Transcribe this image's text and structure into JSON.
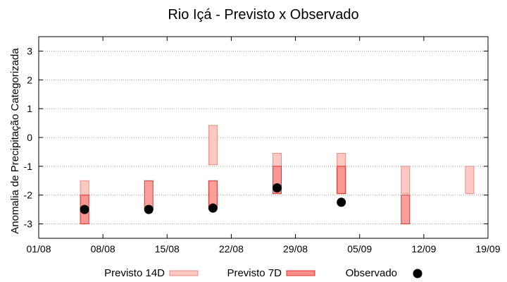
{
  "chart_data": {
    "type": "range-bar",
    "title": "Rio Içá - Previsto x Observado",
    "ylabel": "Anomalia de Precipitação Categorizada",
    "xlabel": "",
    "ylim": [
      -3.5,
      3.5
    ],
    "yticks": [
      -3,
      -2,
      -1,
      0,
      1,
      2,
      3
    ],
    "xlim": [
      "2023-08-01",
      "2023-09-19"
    ],
    "xticks": [
      "01/08",
      "08/08",
      "15/08",
      "22/08",
      "29/08",
      "05/09",
      "12/09",
      "19/09"
    ],
    "grid": true,
    "legend_position": "bottom",
    "colors": {
      "p14_fill": "#fbc8c2",
      "p14_stroke": "#e98b84",
      "p7_fill": "#f98e89",
      "p7_stroke": "#e0302a",
      "obs": "#000000",
      "grid": "#999999"
    },
    "series": [
      {
        "name": "Previsto 14D",
        "kind": "range",
        "points": [
          {
            "date": "2023-08-06",
            "low": -3.0,
            "high": -1.5
          },
          {
            "date": "2023-08-20",
            "low": -0.95,
            "high": 0.42
          },
          {
            "date": "2023-08-27",
            "low": -1.95,
            "high": -0.55
          },
          {
            "date": "2023-09-03",
            "low": -1.95,
            "high": -0.55
          },
          {
            "date": "2023-09-10",
            "low": -1.95,
            "high": -1.0
          },
          {
            "date": "2023-09-17",
            "low": -1.95,
            "high": -1.0
          }
        ]
      },
      {
        "name": "Previsto 7D",
        "kind": "range",
        "points": [
          {
            "date": "2023-08-06",
            "low": -3.0,
            "high": -2.0
          },
          {
            "date": "2023-08-13",
            "low": -2.5,
            "high": -1.5
          },
          {
            "date": "2023-08-20",
            "low": -2.45,
            "high": -1.5
          },
          {
            "date": "2023-08-27",
            "low": -1.95,
            "high": -1.0
          },
          {
            "date": "2023-09-03",
            "low": -1.95,
            "high": -1.0
          },
          {
            "date": "2023-09-10",
            "low": -3.0,
            "high": -2.0
          }
        ]
      },
      {
        "name": "Observado",
        "kind": "point",
        "points": [
          {
            "date": "2023-08-06",
            "value": -2.5
          },
          {
            "date": "2023-08-13",
            "value": -2.5
          },
          {
            "date": "2023-08-20",
            "value": -2.45
          },
          {
            "date": "2023-08-27",
            "value": -1.75
          },
          {
            "date": "2023-09-03",
            "value": -2.25
          }
        ]
      }
    ]
  }
}
